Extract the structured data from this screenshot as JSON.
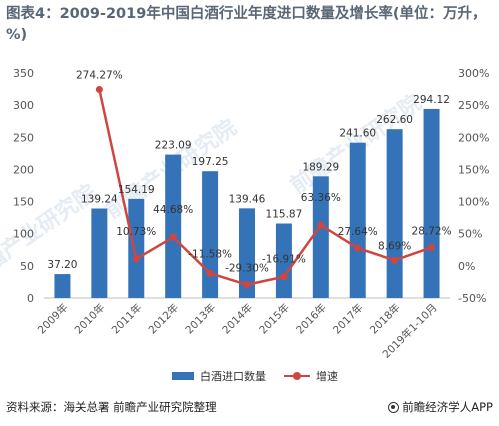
{
  "title": "图表4：2009-2019年中国白酒行业年度进口数量及增长率(单位：万升，%)",
  "chart_data": {
    "type": "bar",
    "categories": [
      "2009年",
      "2010年",
      "2011年",
      "2012年",
      "2013年",
      "2014年",
      "2015年",
      "2016年",
      "2017年",
      "2018年",
      "2019年1-10月"
    ],
    "series": [
      {
        "name": "白酒进口数量",
        "type": "bar",
        "axis": "left",
        "values": [
          37.2,
          139.24,
          154.19,
          223.09,
          197.25,
          139.46,
          115.87,
          189.29,
          241.6,
          262.6,
          294.12
        ],
        "labels": [
          "37.20",
          "139.24",
          "154.19",
          "223.09",
          "197.25",
          "139.46",
          "115.87",
          "189.29",
          "241.60",
          "262.60",
          "294.12"
        ]
      },
      {
        "name": "增速",
        "type": "line",
        "axis": "right",
        "values": [
          null,
          274.27,
          10.73,
          44.68,
          -11.58,
          -29.3,
          -16.91,
          63.36,
          27.64,
          8.69,
          28.72
        ],
        "labels": [
          "",
          "274.27%",
          "10.73%",
          "44.68%",
          "-11.58%",
          "-29.30%",
          "-16.91%",
          "63.36%",
          "27.64%",
          "8.69%",
          "28.72%"
        ]
      }
    ],
    "ylim_left": [
      0,
      350
    ],
    "yticks_left": [
      "0",
      "50",
      "100",
      "150",
      "200",
      "250",
      "300",
      "350"
    ],
    "ylim_right": [
      -50,
      300
    ],
    "yticks_right": [
      "-50%",
      "0%",
      "50%",
      "100%",
      "150%",
      "200%",
      "250%",
      "300%"
    ],
    "grid": false,
    "legend": "bottom",
    "colors": {
      "bar": "#3573b9",
      "line": "#d0453f",
      "axis": "#999999"
    }
  },
  "legend": {
    "bar_label": "白酒进口数量",
    "line_label": "增速"
  },
  "footer": {
    "source": "资料来源：海关总署 前瞻产业研究院整理",
    "brand": "前瞻经济学人APP"
  },
  "watermark": {
    "text": "前瞻产业研究院"
  }
}
